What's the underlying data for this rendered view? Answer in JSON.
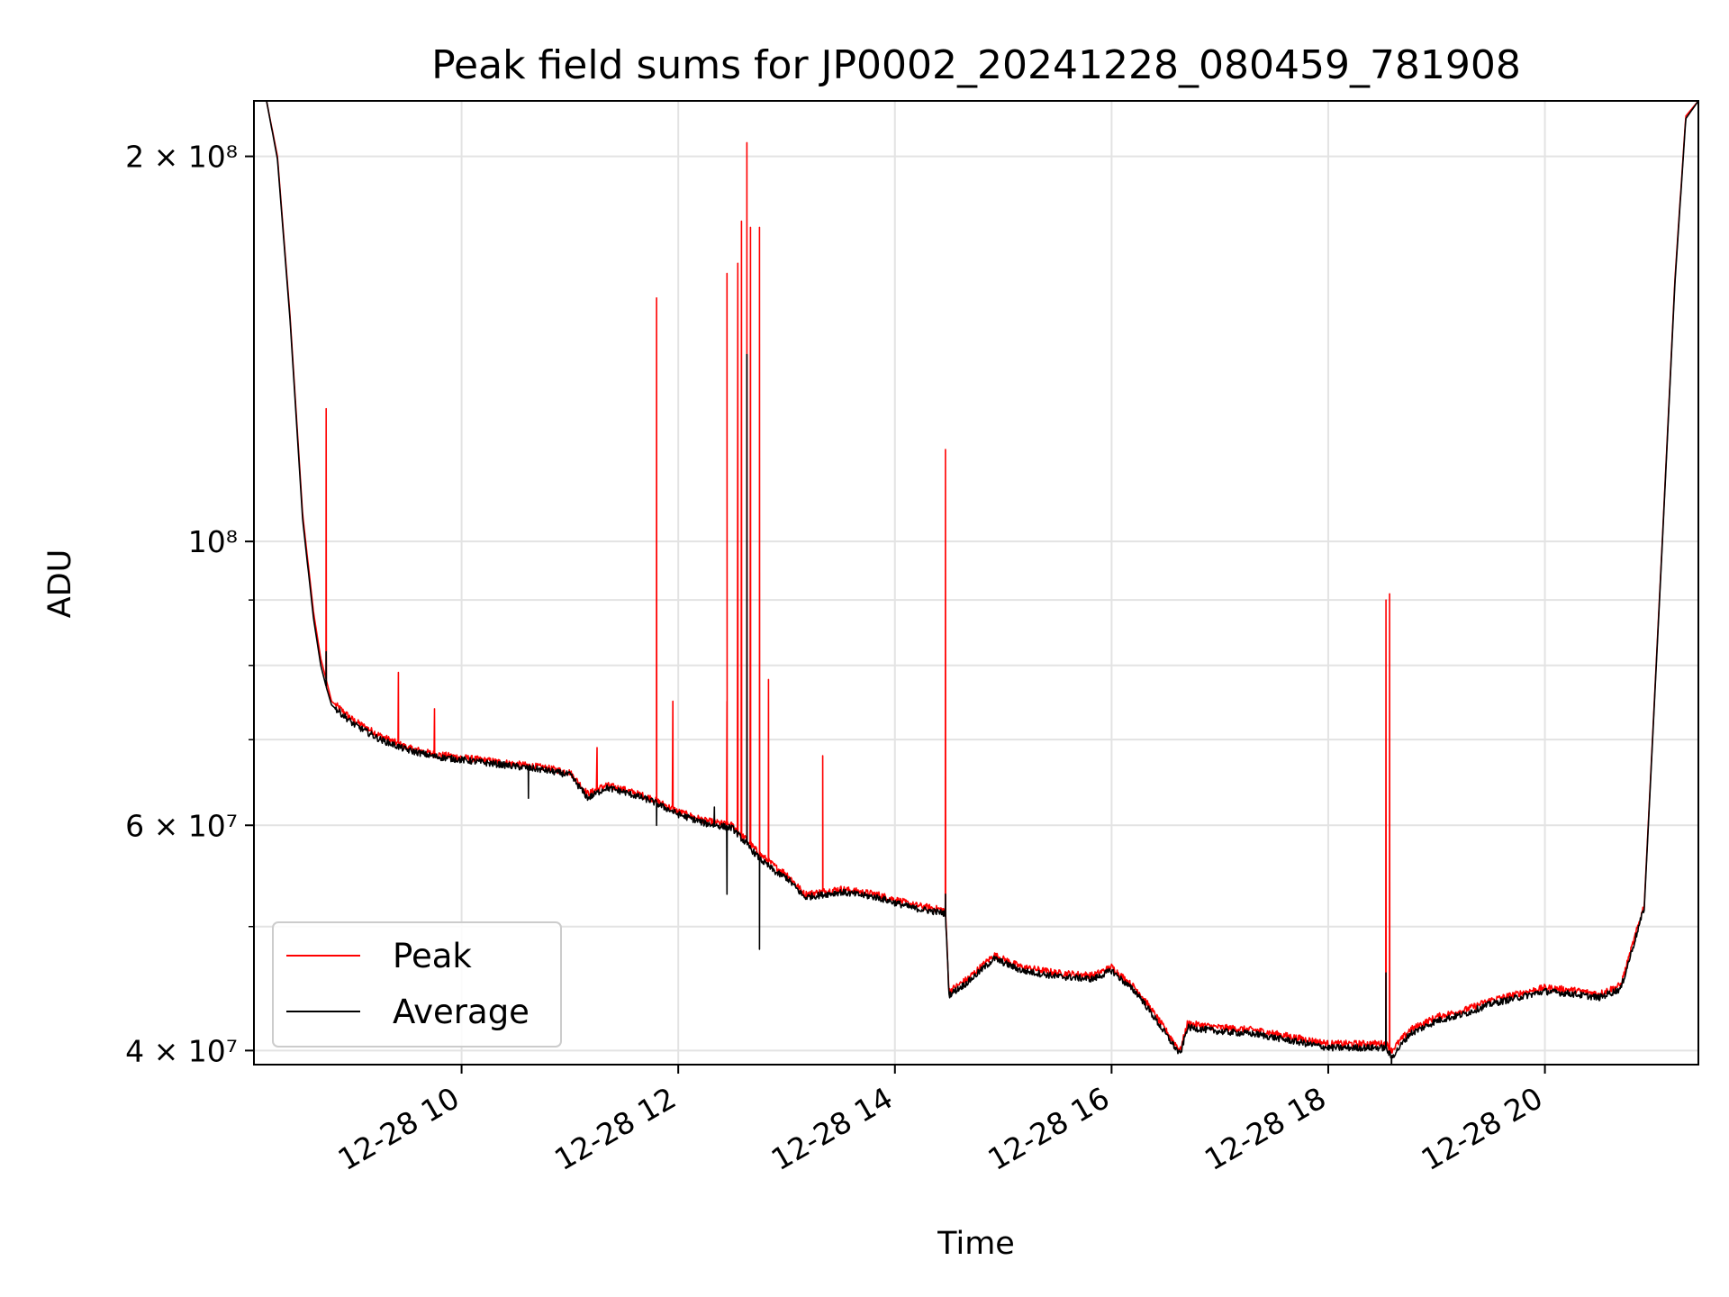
{
  "chart_data": {
    "type": "line",
    "title": "Peak field sums for JP0002_20241228_080459_781908",
    "xlabel": "Time",
    "ylabel": "ADU",
    "x_axis": "time",
    "y_scale": "log",
    "xlim": [
      "12-28 08:05",
      "12-28 21:25"
    ],
    "ylim": [
      39000000,
      221000000
    ],
    "grid": true,
    "legend_position": "lower-left",
    "x_ticks": [
      {
        "value": "12-28 10:00",
        "label": "12-28 10"
      },
      {
        "value": "12-28 12:00",
        "label": "12-28 12"
      },
      {
        "value": "12-28 14:00",
        "label": "12-28 14"
      },
      {
        "value": "12-28 16:00",
        "label": "12-28 16"
      },
      {
        "value": "12-28 18:00",
        "label": "12-28 18"
      },
      {
        "value": "12-28 20:00",
        "label": "12-28 20"
      }
    ],
    "y_ticks": [
      {
        "value": 40000000,
        "label": "4 × 10⁷"
      },
      {
        "value": 60000000,
        "label": "6 × 10⁷"
      },
      {
        "value": 100000000,
        "label": "10⁸"
      },
      {
        "value": 200000000,
        "label": "2 × 10⁸"
      }
    ],
    "y_minor_grid": [
      50000000,
      70000000,
      80000000,
      90000000
    ],
    "series": [
      {
        "name": "Peak",
        "color": "#ff0000",
        "x": [
          "12-28 08:05",
          "12-28 08:12",
          "12-28 08:18",
          "12-28 08:25",
          "12-28 08:32",
          "12-28 08:38",
          "12-28 08:42",
          "12-28 08:45",
          "12-28 08:48",
          "12-28 09:00",
          "12-28 09:15",
          "12-28 09:30",
          "12-28 09:45",
          "12-28 10:00",
          "12-28 10:15",
          "12-28 10:30",
          "12-28 10:45",
          "12-28 11:00",
          "12-28 11:10",
          "12-28 11:20",
          "12-28 11:30",
          "12-28 11:45",
          "12-28 12:00",
          "12-28 12:15",
          "12-28 12:30",
          "12-28 12:45",
          "12-28 12:55",
          "12-28 13:00",
          "12-28 13:10",
          "12-28 13:30",
          "12-28 13:50",
          "12-28 14:10",
          "12-28 14:28",
          "12-28 14:30",
          "12-28 14:40",
          "12-28 14:55",
          "12-28 15:10",
          "12-28 15:30",
          "12-28 15:50",
          "12-28 16:00",
          "12-28 16:15",
          "12-28 16:30",
          "12-28 16:38",
          "12-28 16:42",
          "12-28 17:00",
          "12-28 17:20",
          "12-28 17:40",
          "12-28 18:00",
          "12-28 18:20",
          "12-28 18:32",
          "12-28 18:35",
          "12-28 18:45",
          "12-28 19:00",
          "12-28 19:15",
          "12-28 19:30",
          "12-28 19:45",
          "12-28 20:00",
          "12-28 20:15",
          "12-28 20:30",
          "12-28 20:42",
          "12-28 20:45",
          "12-28 20:55",
          "12-28 21:05",
          "12-28 21:12",
          "12-28 21:18",
          "12-28 21:25"
        ],
        "values": [
          221000000,
          221000000,
          200000000,
          150000000,
          105000000,
          88000000,
          81000000,
          78000000,
          75000000,
          72500000,
          70500000,
          69000000,
          68200000,
          67800000,
          67400000,
          67000000,
          66600000,
          66000000,
          63500000,
          64500000,
          64000000,
          63000000,
          61500000,
          60500000,
          60000000,
          57000000,
          55500000,
          55000000,
          53000000,
          53500000,
          53000000,
          52000000,
          51500000,
          44500000,
          45500000,
          47500000,
          46500000,
          46000000,
          45800000,
          46500000,
          44500000,
          41500000,
          40000000,
          42000000,
          41700000,
          41500000,
          41000000,
          40500000,
          40500000,
          40500000,
          40000000,
          41500000,
          42500000,
          43000000,
          43800000,
          44300000,
          44800000,
          44600000,
          44300000,
          45000000,
          46500000,
          52000000,
          100000000,
          160000000,
          215000000,
          221000000
        ],
        "spikes": [
          {
            "x": "12-28 08:45",
            "value": 127000000
          },
          {
            "x": "12-28 09:25",
            "value": 79000000
          },
          {
            "x": "12-28 09:45",
            "value": 74000000
          },
          {
            "x": "12-28 11:15",
            "value": 69000000
          },
          {
            "x": "12-28 11:48",
            "value": 155000000
          },
          {
            "x": "12-28 11:57",
            "value": 75000000
          },
          {
            "x": "12-28 12:27",
            "value": 75000000
          },
          {
            "x": "12-28 12:27",
            "value": 162000000
          },
          {
            "x": "12-28 12:33",
            "value": 165000000
          },
          {
            "x": "12-28 12:35",
            "value": 178000000
          },
          {
            "x": "12-28 12:38",
            "value": 205000000
          },
          {
            "x": "12-28 12:40",
            "value": 176000000
          },
          {
            "x": "12-28 12:45",
            "value": 176000000
          },
          {
            "x": "12-28 12:50",
            "value": 78000000
          },
          {
            "x": "12-28 13:20",
            "value": 68000000
          },
          {
            "x": "12-28 14:28",
            "value": 118000000
          },
          {
            "x": "12-28 18:32",
            "value": 90000000
          },
          {
            "x": "12-28 18:34",
            "value": 91000000
          }
        ]
      },
      {
        "name": "Average",
        "color": "#000000",
        "x": [
          "12-28 08:05",
          "12-28 08:12",
          "12-28 08:18",
          "12-28 08:25",
          "12-28 08:32",
          "12-28 08:38",
          "12-28 08:42",
          "12-28 08:45",
          "12-28 08:48",
          "12-28 09:00",
          "12-28 09:15",
          "12-28 09:30",
          "12-28 09:45",
          "12-28 10:00",
          "12-28 10:15",
          "12-28 10:30",
          "12-28 10:45",
          "12-28 11:00",
          "12-28 11:10",
          "12-28 11:20",
          "12-28 11:30",
          "12-28 11:45",
          "12-28 12:00",
          "12-28 12:15",
          "12-28 12:30",
          "12-28 12:45",
          "12-28 12:55",
          "12-28 13:00",
          "12-28 13:10",
          "12-28 13:30",
          "12-28 13:50",
          "12-28 14:10",
          "12-28 14:28",
          "12-28 14:30",
          "12-28 14:40",
          "12-28 14:55",
          "12-28 15:10",
          "12-28 15:30",
          "12-28 15:50",
          "12-28 16:00",
          "12-28 16:15",
          "12-28 16:30",
          "12-28 16:38",
          "12-28 16:42",
          "12-28 17:00",
          "12-28 17:20",
          "12-28 17:40",
          "12-28 18:00",
          "12-28 18:20",
          "12-28 18:32",
          "12-28 18:35",
          "12-28 18:45",
          "12-28 19:00",
          "12-28 19:15",
          "12-28 19:30",
          "12-28 19:45",
          "12-28 20:00",
          "12-28 20:15",
          "12-28 20:30",
          "12-28 20:42",
          "12-28 20:45",
          "12-28 20:55",
          "12-28 21:05",
          "12-28 21:12",
          "12-28 21:18",
          "12-28 21:25"
        ],
        "values": [
          221000000,
          221000000,
          199000000,
          149000000,
          104000000,
          87000000,
          80000000,
          77000000,
          74500000,
          72000000,
          70000000,
          68700000,
          67900000,
          67500000,
          67100000,
          66700000,
          66300000,
          65700000,
          63000000,
          64200000,
          63700000,
          62700000,
          61200000,
          60200000,
          59700000,
          56500000,
          55000000,
          54600000,
          52700000,
          53200000,
          52700000,
          51700000,
          51200000,
          44200000,
          45200000,
          47200000,
          46200000,
          45700000,
          45500000,
          46200000,
          44200000,
          41200000,
          39700000,
          41700000,
          41400000,
          41200000,
          40700000,
          40200000,
          40200000,
          40200000,
          39500000,
          41200000,
          42200000,
          42700000,
          43500000,
          44000000,
          44500000,
          44300000,
          44000000,
          44700000,
          46200000,
          51700000,
          99500000,
          159000000,
          214000000,
          221000000
        ],
        "spikes": [
          {
            "x": "12-28 08:45",
            "value": 82000000
          },
          {
            "x": "12-28 10:37",
            "value": 63000000
          },
          {
            "x": "12-28 11:48",
            "value": 60000000
          },
          {
            "x": "12-28 12:20",
            "value": 62000000
          },
          {
            "x": "12-28 12:27",
            "value": 53000000
          },
          {
            "x": "12-28 12:38",
            "value": 140000000
          },
          {
            "x": "12-28 12:45",
            "value": 48000000
          },
          {
            "x": "12-28 14:28",
            "value": 53000000
          },
          {
            "x": "12-28 18:32",
            "value": 46000000
          },
          {
            "x": "12-28 18:35",
            "value": 38000000
          }
        ]
      }
    ]
  }
}
